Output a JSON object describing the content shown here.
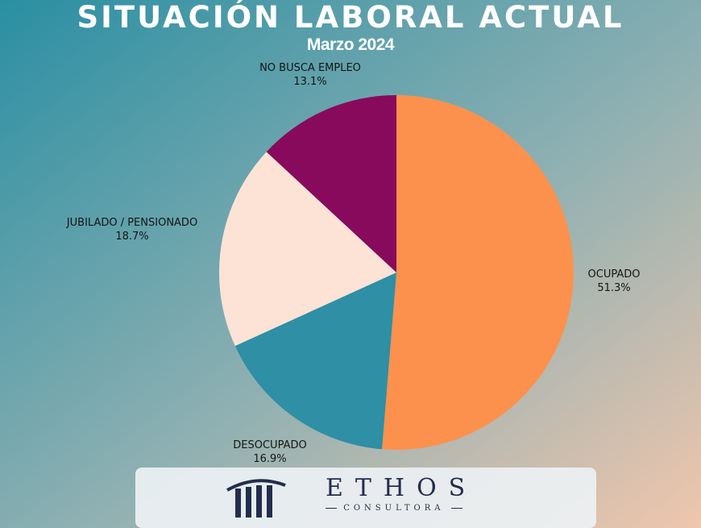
{
  "header": {
    "title": "SITUACIÓN LABORAL ACTUAL",
    "subtitle": "Marzo 2024"
  },
  "chart_data": {
    "type": "pie",
    "title": "SITUACIÓN LABORAL ACTUAL",
    "subtitle": "Marzo 2024",
    "slices": [
      {
        "label": "OCUPADO",
        "value": 51.3,
        "display": "51.3%",
        "color": "#fc914d"
      },
      {
        "label": "DESOCUPADO",
        "value": 16.9,
        "display": "16.9%",
        "color": "#2e8fa5"
      },
      {
        "label": "JUBILADO / PENSIONADO",
        "value": 18.7,
        "display": "18.7%",
        "color": "#fde3d6"
      },
      {
        "label": "NO BUSCA EMPLEO",
        "value": 13.1,
        "display": "13.1%",
        "color": "#880a5c"
      }
    ]
  },
  "logo": {
    "name": "ETHOS",
    "tagline": "CONSULTORA",
    "color": "#232d4d"
  },
  "colors": {
    "background_start": "#2a8fa3",
    "background_end": "#f0c6ad",
    "text": "#ffffff"
  }
}
